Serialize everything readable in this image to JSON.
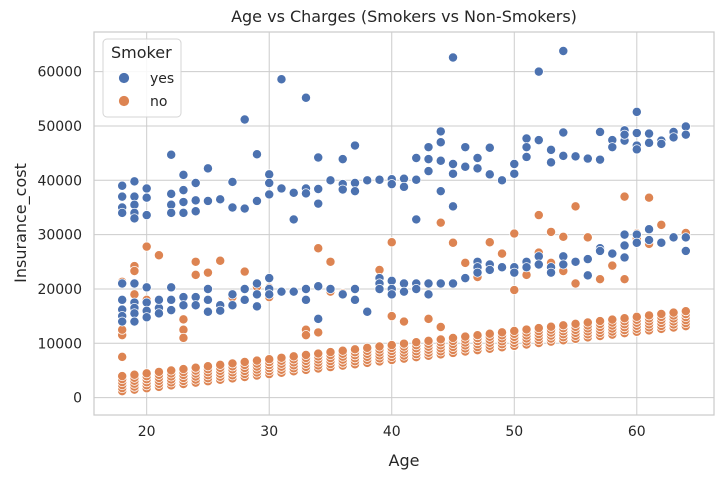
{
  "chart_data": {
    "type": "scatter",
    "title": "Age vs Charges (Smokers vs Non-Smokers)",
    "xlabel": "Age",
    "ylabel": "Insurance_cost",
    "xlim": [
      15.7,
      66.3
    ],
    "ylim": [
      -3200,
      67300
    ],
    "xticks": [
      20,
      30,
      40,
      50,
      60
    ],
    "yticks": [
      0,
      10000,
      20000,
      30000,
      40000,
      50000,
      60000
    ],
    "grid": true,
    "legend": {
      "title": "Smoker",
      "placement": "top-left"
    },
    "series": [
      {
        "name": "yes",
        "color": "#4c72b0",
        "points": [
          [
            18,
            39000
          ],
          [
            18,
            37000
          ],
          [
            18,
            35000
          ],
          [
            18,
            34000
          ],
          [
            19,
            39800
          ],
          [
            19,
            37000
          ],
          [
            19,
            35500
          ],
          [
            19,
            34000
          ],
          [
            19,
            33000
          ],
          [
            20,
            38500
          ],
          [
            20,
            36800
          ],
          [
            20,
            33600
          ],
          [
            22,
            44700
          ],
          [
            22,
            37500
          ],
          [
            22,
            35500
          ],
          [
            22,
            34000
          ],
          [
            23,
            41000
          ],
          [
            23,
            38200
          ],
          [
            23,
            36000
          ],
          [
            23,
            34000
          ],
          [
            24,
            39500
          ],
          [
            24,
            36300
          ],
          [
            24,
            34300
          ],
          [
            25,
            42200
          ],
          [
            25,
            36200
          ],
          [
            26,
            36500
          ],
          [
            27,
            39700
          ],
          [
            27,
            35000
          ],
          [
            28,
            51200
          ],
          [
            28,
            34800
          ],
          [
            29,
            44800
          ],
          [
            29,
            36200
          ],
          [
            30,
            41100
          ],
          [
            30,
            39500
          ],
          [
            30,
            37400
          ],
          [
            31,
            58600
          ],
          [
            31,
            38500
          ],
          [
            32,
            37700
          ],
          [
            32,
            32800
          ],
          [
            33,
            55200
          ],
          [
            33,
            38500
          ],
          [
            33,
            37600
          ],
          [
            34,
            44200
          ],
          [
            34,
            38400
          ],
          [
            34,
            35700
          ],
          [
            35,
            40000
          ],
          [
            36,
            43900
          ],
          [
            36,
            39300
          ],
          [
            36,
            38300
          ],
          [
            37,
            46400
          ],
          [
            37,
            39500
          ],
          [
            37,
            38000
          ],
          [
            38,
            40000
          ],
          [
            39,
            40100
          ],
          [
            40,
            40200
          ],
          [
            40,
            39300
          ],
          [
            41,
            40300
          ],
          [
            41,
            38800
          ],
          [
            42,
            44100
          ],
          [
            42,
            40100
          ],
          [
            42,
            32800
          ],
          [
            43,
            46100
          ],
          [
            43,
            43900
          ],
          [
            43,
            41700
          ],
          [
            44,
            49000
          ],
          [
            44,
            47000
          ],
          [
            44,
            43600
          ],
          [
            44,
            38000
          ],
          [
            45,
            62600
          ],
          [
            45,
            43000
          ],
          [
            45,
            41200
          ],
          [
            45,
            35200
          ],
          [
            46,
            46100
          ],
          [
            46,
            42500
          ],
          [
            47,
            44100
          ],
          [
            47,
            42200
          ],
          [
            48,
            46000
          ],
          [
            48,
            41100
          ],
          [
            49,
            40000
          ],
          [
            50,
            43000
          ],
          [
            50,
            41200
          ],
          [
            51,
            47700
          ],
          [
            51,
            46100
          ],
          [
            51,
            44300
          ],
          [
            52,
            60000
          ],
          [
            52,
            47400
          ],
          [
            53,
            45600
          ],
          [
            53,
            43300
          ],
          [
            54,
            63800
          ],
          [
            54,
            48800
          ],
          [
            54,
            44500
          ],
          [
            55,
            44400
          ],
          [
            56,
            44000
          ],
          [
            57,
            48900
          ],
          [
            57,
            43800
          ],
          [
            58,
            47400
          ],
          [
            58,
            46100
          ],
          [
            59,
            49200
          ],
          [
            59,
            47300
          ],
          [
            59,
            48400
          ],
          [
            60,
            52600
          ],
          [
            60,
            48700
          ],
          [
            60,
            46400
          ],
          [
            60,
            45700
          ],
          [
            61,
            48600
          ],
          [
            61,
            46900
          ],
          [
            62,
            47300
          ],
          [
            62,
            46700
          ],
          [
            63,
            48900
          ],
          [
            63,
            47900
          ],
          [
            64,
            49900
          ],
          [
            64,
            48400
          ],
          [
            18,
            21000
          ],
          [
            18,
            18000
          ],
          [
            18,
            16200
          ],
          [
            18,
            15000
          ],
          [
            18,
            14000
          ],
          [
            19,
            21000
          ],
          [
            19,
            17500
          ],
          [
            19,
            16500
          ],
          [
            19,
            15500
          ],
          [
            19,
            14000
          ],
          [
            20,
            20300
          ],
          [
            20,
            17500
          ],
          [
            20,
            16000
          ],
          [
            20,
            14800
          ],
          [
            21,
            16500
          ],
          [
            21,
            15500
          ],
          [
            21,
            18000
          ],
          [
            22,
            20300
          ],
          [
            22,
            18000
          ],
          [
            22,
            16100
          ],
          [
            23,
            18500
          ],
          [
            23,
            17000
          ],
          [
            24,
            18500
          ],
          [
            24,
            17000
          ],
          [
            25,
            20000
          ],
          [
            25,
            18000
          ],
          [
            25,
            15800
          ],
          [
            26,
            17000
          ],
          [
            26,
            16000
          ],
          [
            27,
            19000
          ],
          [
            27,
            17000
          ],
          [
            28,
            20000
          ],
          [
            28,
            18000
          ],
          [
            29,
            21000
          ],
          [
            29,
            19000
          ],
          [
            29,
            16800
          ],
          [
            30,
            22000
          ],
          [
            30,
            20000
          ],
          [
            30,
            19000
          ],
          [
            31,
            19500
          ],
          [
            32,
            19500
          ],
          [
            33,
            20000
          ],
          [
            33,
            18000
          ],
          [
            34,
            20500
          ],
          [
            34,
            14500
          ],
          [
            35,
            20000
          ],
          [
            36,
            19000
          ],
          [
            37,
            20000
          ],
          [
            37,
            18000
          ],
          [
            38,
            15800
          ],
          [
            39,
            22000
          ],
          [
            39,
            21000
          ],
          [
            39,
            20000
          ],
          [
            40,
            21500
          ],
          [
            40,
            20000
          ],
          [
            40,
            19000
          ],
          [
            41,
            21000
          ],
          [
            41,
            19500
          ],
          [
            42,
            21000
          ],
          [
            42,
            20000
          ],
          [
            43,
            21000
          ],
          [
            43,
            19000
          ],
          [
            44,
            21000
          ],
          [
            45,
            21000
          ],
          [
            46,
            22000
          ],
          [
            47,
            25000
          ],
          [
            47,
            24000
          ],
          [
            47,
            23000
          ],
          [
            48,
            24500
          ],
          [
            48,
            23500
          ],
          [
            49,
            24000
          ],
          [
            50,
            24000
          ],
          [
            50,
            23000
          ],
          [
            51,
            25000
          ],
          [
            51,
            24000
          ],
          [
            52,
            26000
          ],
          [
            52,
            24500
          ],
          [
            53,
            24000
          ],
          [
            53,
            23000
          ],
          [
            54,
            26000
          ],
          [
            54,
            24500
          ],
          [
            55,
            25000
          ],
          [
            56,
            25500
          ],
          [
            56,
            22500
          ],
          [
            57,
            27500
          ],
          [
            57,
            27000
          ],
          [
            58,
            26500
          ],
          [
            59,
            30000
          ],
          [
            59,
            28000
          ],
          [
            59,
            25800
          ],
          [
            60,
            30000
          ],
          [
            60,
            28500
          ],
          [
            61,
            31000
          ],
          [
            61,
            29000
          ],
          [
            62,
            28500
          ],
          [
            63,
            29500
          ],
          [
            64,
            29500
          ],
          [
            64,
            27000
          ]
        ]
      },
      {
        "name": "no",
        "color": "#dd8452",
        "points": [
          [
            18,
            21300
          ],
          [
            18,
            11500
          ],
          [
            18,
            12500
          ],
          [
            18,
            7500
          ],
          [
            19,
            24200
          ],
          [
            19,
            23300
          ],
          [
            19,
            19000
          ],
          [
            19,
            16000
          ],
          [
            20,
            27800
          ],
          [
            20,
            18000
          ],
          [
            21,
            26200
          ],
          [
            23,
            14400
          ],
          [
            23,
            12500
          ],
          [
            23,
            11000
          ],
          [
            24,
            25000
          ],
          [
            24,
            22600
          ],
          [
            25,
            23000
          ],
          [
            26,
            25200
          ],
          [
            27,
            18500
          ],
          [
            28,
            23200
          ],
          [
            28,
            18000
          ],
          [
            29,
            20400
          ],
          [
            30,
            20200
          ],
          [
            30,
            18500
          ],
          [
            31,
            19500
          ],
          [
            33,
            12500
          ],
          [
            33,
            11500
          ],
          [
            34,
            27500
          ],
          [
            34,
            12000
          ],
          [
            35,
            25000
          ],
          [
            35,
            19500
          ],
          [
            36,
            19200
          ],
          [
            39,
            23500
          ],
          [
            39,
            22000
          ],
          [
            40,
            28600
          ],
          [
            40,
            15000
          ],
          [
            41,
            14000
          ],
          [
            43,
            14500
          ],
          [
            44,
            32200
          ],
          [
            44,
            13000
          ],
          [
            45,
            28500
          ],
          [
            46,
            24800
          ],
          [
            47,
            22200
          ],
          [
            48,
            28600
          ],
          [
            49,
            26500
          ],
          [
            50,
            30200
          ],
          [
            50,
            19800
          ],
          [
            51,
            22600
          ],
          [
            52,
            33600
          ],
          [
            52,
            26700
          ],
          [
            53,
            30500
          ],
          [
            53,
            24800
          ],
          [
            54,
            29600
          ],
          [
            54,
            23300
          ],
          [
            55,
            35200
          ],
          [
            55,
            21000
          ],
          [
            56,
            29500
          ],
          [
            57,
            21800
          ],
          [
            58,
            24300
          ],
          [
            59,
            37000
          ],
          [
            59,
            21800
          ],
          [
            60,
            30200
          ],
          [
            60,
            29300
          ],
          [
            61,
            36800
          ],
          [
            61,
            28300
          ],
          [
            62,
            31800
          ],
          [
            64,
            30300
          ]
        ]
      }
    ]
  }
}
